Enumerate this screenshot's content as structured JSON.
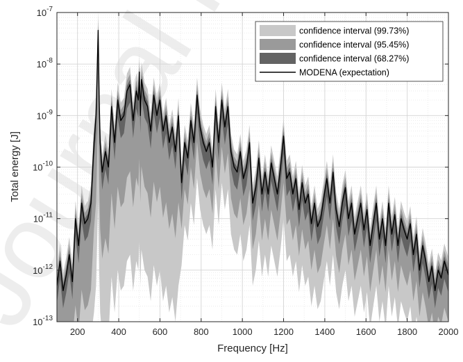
{
  "chart_data": {
    "type": "line",
    "xlabel": "Frequency [Hz]",
    "ylabel": "Total energy [J]",
    "xlim": [
      100,
      2000
    ],
    "ylim": [
      1e-13,
      1e-07
    ],
    "yscale": "log",
    "grid": true,
    "legend_position": "top-right",
    "x_ticks": [
      "200",
      "400",
      "600",
      "800",
      "1000",
      "1200",
      "1400",
      "1600",
      "1800",
      "2000"
    ],
    "y_ticks": [
      {
        "base": "10",
        "exp": "-13"
      },
      {
        "base": "10",
        "exp": "-12"
      },
      {
        "base": "10",
        "exp": "-11"
      },
      {
        "base": "10",
        "exp": "-10"
      },
      {
        "base": "10",
        "exp": "-9"
      },
      {
        "base": "10",
        "exp": "-8"
      },
      {
        "base": "10",
        "exp": "-7"
      }
    ],
    "legend": [
      {
        "label": "confidence interval (99.73%)",
        "color": "#c8c8c8"
      },
      {
        "label": "confidence interval (95.45%)",
        "color": "#9a9a9a"
      },
      {
        "label": "confidence interval (68.27%)",
        "color": "#636363"
      },
      {
        "label": "MODENA (expectation)",
        "color": "#000000"
      }
    ],
    "series": [
      {
        "name": "MODENA (expectation)",
        "x": [
          100,
          115,
          130,
          145,
          160,
          175,
          190,
          205,
          220,
          235,
          250,
          265,
          280,
          290,
          300,
          305,
          310,
          320,
          335,
          350,
          365,
          380,
          395,
          410,
          425,
          440,
          455,
          470,
          485,
          495,
          500,
          505,
          510,
          525,
          540,
          555,
          570,
          585,
          600,
          615,
          630,
          645,
          660,
          675,
          690,
          705,
          720,
          735,
          750,
          765,
          780,
          795,
          810,
          825,
          840,
          855,
          870,
          885,
          900,
          915,
          930,
          945,
          960,
          975,
          990,
          1005,
          1020,
          1035,
          1050,
          1065,
          1080,
          1095,
          1110,
          1125,
          1140,
          1155,
          1170,
          1185,
          1200,
          1215,
          1230,
          1245,
          1260,
          1275,
          1290,
          1305,
          1320,
          1335,
          1350,
          1365,
          1380,
          1395,
          1410,
          1425,
          1440,
          1455,
          1470,
          1485,
          1500,
          1515,
          1530,
          1545,
          1560,
          1575,
          1590,
          1605,
          1620,
          1635,
          1650,
          1665,
          1680,
          1695,
          1710,
          1725,
          1740,
          1755,
          1770,
          1785,
          1800,
          1815,
          1830,
          1845,
          1860,
          1875,
          1890,
          1905,
          1920,
          1935,
          1950,
          1965,
          1980,
          2000
        ],
        "values": [
          5e-13,
          1.5e-12,
          4e-13,
          8e-13,
          2e-12,
          6e-13,
          1e-11,
          3e-12,
          2e-11,
          8e-12,
          1e-11,
          2e-11,
          3e-10,
          1e-09,
          4.5e-08,
          2e-09,
          3e-10,
          8e-11,
          2e-10,
          1e-10,
          1.5e-09,
          3e-10,
          2e-09,
          8e-10,
          1e-09,
          3e-09,
          4e-09,
          8e-10,
          3e-09,
          2e-09,
          7e-09,
          1e-09,
          5e-09,
          2e-09,
          1.5e-09,
          5e-10,
          2.5e-09,
          1e-09,
          2e-09,
          5e-10,
          1e-09,
          3e-10,
          6e-10,
          2e-10,
          1e-09,
          5e-11,
          3e-10,
          1.5e-10,
          8e-10,
          3e-10,
          2.5e-09,
          6e-10,
          3e-10,
          2e-10,
          3e-10,
          1e-10,
          1.5e-09,
          3e-10,
          2e-09,
          6e-10,
          1.5e-09,
          2e-10,
          1e-10,
          8e-11,
          2e-10,
          6e-11,
          1e-10,
          3e-10,
          2e-11,
          4e-11,
          1.5e-10,
          3e-11,
          8e-11,
          3e-11,
          1.2e-10,
          6e-11,
          3e-11,
          1e-10,
          4e-10,
          6e-11,
          8e-11,
          3e-11,
          6e-11,
          1.5e-11,
          5e-11,
          2e-11,
          3e-11,
          8e-12,
          2e-11,
          7e-12,
          1e-11,
          2.5e-11,
          6e-11,
          2e-11,
          8e-11,
          1.5e-11,
          7e-12,
          2e-11,
          4e-11,
          1e-11,
          2e-11,
          5e-12,
          1e-11,
          2e-11,
          6e-12,
          1.5e-11,
          3e-12,
          8e-12,
          2e-11,
          4e-12,
          1e-11,
          3e-12,
          2e-11,
          5e-12,
          1.2e-11,
          3e-12,
          1e-11,
          6e-12,
          4e-12,
          8e-12,
          2e-12,
          5e-12,
          1e-12,
          3e-12,
          1.5e-12,
          6e-13,
          1.2e-12,
          4e-13,
          1e-12,
          7e-13,
          1.5e-12,
          8e-13
        ]
      }
    ]
  },
  "watermark": "Journal Pre-proof"
}
